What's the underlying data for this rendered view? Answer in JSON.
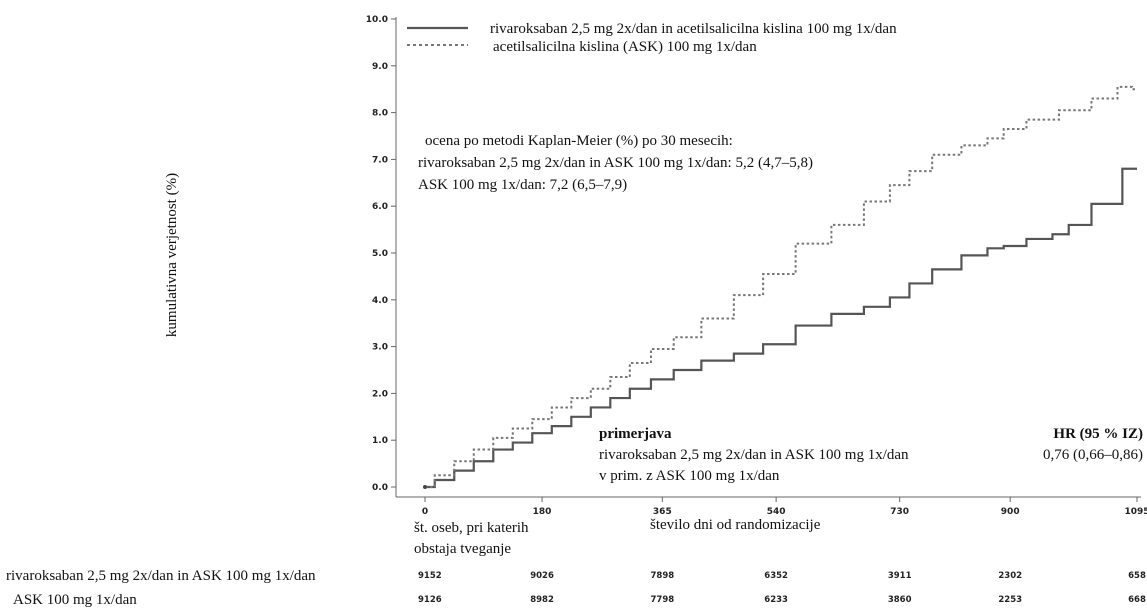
{
  "chart_data": {
    "type": "line",
    "ylabel": "kumulativna verjetnost (%)",
    "xlabel": "število dni od randomizacije",
    "xlim": [
      0,
      1095
    ],
    "ylim": [
      0,
      10
    ],
    "x_ticks": [
      0,
      180,
      365,
      540,
      730,
      900,
      1095
    ],
    "x_tick_labels": [
      "0",
      "180",
      "365",
      "540",
      "730",
      "900",
      "1095"
    ],
    "y_ticks": [
      0,
      1,
      2,
      3,
      4,
      5,
      6,
      7,
      8,
      9,
      10
    ],
    "y_tick_labels": [
      "0.0",
      "1.0",
      "2.0",
      "3.0",
      "4.0",
      "5.0",
      "6.0",
      "7.0",
      "8.0",
      "9.0",
      "10.0"
    ],
    "legend_position": "top-left",
    "series": [
      {
        "name": "rivaroksaban 2,5 mg 2x/dan in acetilsalicilna kislina 100 mg 1x/dan",
        "style": "solid",
        "color": "#555555",
        "x": [
          0,
          30,
          60,
          90,
          120,
          150,
          180,
          210,
          240,
          270,
          300,
          330,
          365,
          400,
          450,
          500,
          540,
          600,
          650,
          700,
          730,
          760,
          800,
          850,
          880,
          900,
          950,
          980,
          1000,
          1050,
          1095
        ],
        "y": [
          0.0,
          0.15,
          0.35,
          0.55,
          0.8,
          0.95,
          1.15,
          1.3,
          1.5,
          1.7,
          1.9,
          2.1,
          2.3,
          2.5,
          2.7,
          2.85,
          3.05,
          3.45,
          3.7,
          3.85,
          4.05,
          4.35,
          4.65,
          4.95,
          5.1,
          5.15,
          5.3,
          5.4,
          5.6,
          6.05,
          6.8
        ]
      },
      {
        "name": "acetilsalicilna kislina (ASK) 100 mg 1x/dan",
        "style": "dotted",
        "color": "#777777",
        "x": [
          0,
          30,
          60,
          90,
          120,
          150,
          180,
          210,
          240,
          270,
          300,
          330,
          365,
          400,
          450,
          500,
          540,
          600,
          650,
          700,
          730,
          760,
          800,
          850,
          880,
          900,
          950,
          1000,
          1050,
          1080,
          1095
        ],
        "y": [
          0.0,
          0.25,
          0.55,
          0.8,
          1.05,
          1.25,
          1.45,
          1.7,
          1.9,
          2.1,
          2.35,
          2.65,
          2.95,
          3.2,
          3.6,
          4.1,
          4.55,
          5.2,
          5.6,
          6.1,
          6.45,
          6.75,
          7.1,
          7.3,
          7.45,
          7.65,
          7.85,
          8.05,
          8.3,
          8.55,
          8.5
        ]
      }
    ],
    "annotations": {
      "km_lines": [
        "ocena po metodi Kaplan-Meier (%) po 30 mesecih:",
        "rivaroksaban 2,5 mg 2x/dan in ASK 100 mg 1x/dan: 5,2 (4,7–5,8)",
        "ASK 100 mg 1x/dan: 7,2 (6,5–7,9)"
      ],
      "comparison_title": "primerjava",
      "comparison_lines": [
        "rivaroksaban 2,5 mg 2x/dan in ASK 100 mg 1x/dan",
        "v prim. z ASK 100 mg 1x/dan"
      ],
      "hr_title": "HR (95 % IZ)",
      "hr_value": "0,76 (0,66–0,86)"
    },
    "risk_table": {
      "title_lines": [
        "št. oseb, pri katerih",
        "obstaja tveganje"
      ],
      "rows": [
        {
          "label": "rivaroksaban 2,5 mg 2x/dan in ASK 100 mg 1x/dan",
          "values": [
            "9152",
            "9026",
            "7898",
            "6352",
            "3911",
            "2302",
            "658"
          ]
        },
        {
          "label": "ASK 100 mg 1x/dan",
          "values": [
            "9126",
            "8982",
            "7798",
            "6233",
            "3860",
            "2253",
            "668"
          ]
        }
      ]
    }
  }
}
